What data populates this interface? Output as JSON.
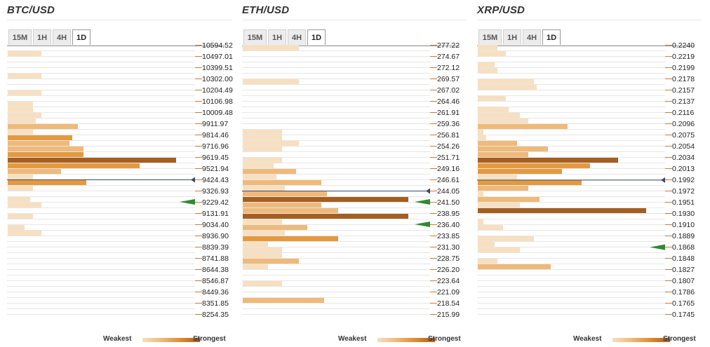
{
  "tabs": [
    "15M",
    "1H",
    "4H",
    "1D"
  ],
  "active_tab": "1D",
  "legend": {
    "weakest": "Weakest",
    "strongest": "Strongest"
  },
  "colors": {
    "lightest": "#f7dfc0",
    "light": "#f2c896",
    "medium": "#efb97a",
    "strong": "#e5993f",
    "strongest": "#a55e21",
    "marker": "#2e8b2e",
    "price_line": "#3b4a6b"
  },
  "chart_data": [
    {
      "type": "bar",
      "title": "BTC/USD",
      "price_levels": [
        "10594.52",
        "10497.01",
        "10399.51",
        "10302.00",
        "10204.49",
        "10106.98",
        "10009.48",
        "9911.97",
        "9814.46",
        "9716.96",
        "9619.45",
        "9521.94",
        "9424.43",
        "9326.93",
        "9229.42",
        "9131.91",
        "9034.40",
        "8936.90",
        "8839.39",
        "8741.88",
        "8644.38",
        "8546.87",
        "8449.36",
        "8351.85",
        "8254.35"
      ],
      "bars": [
        [
          0,
          0
        ],
        [
          1,
          12
        ],
        [
          0,
          0
        ],
        [
          0,
          0
        ],
        [
          0,
          0
        ],
        [
          1,
          12
        ],
        [
          0,
          0
        ],
        [
          0,
          0
        ],
        [
          1,
          12
        ],
        [
          0,
          0
        ],
        [
          1,
          9
        ],
        [
          1,
          9
        ],
        [
          1,
          12
        ],
        [
          1,
          10
        ],
        [
          2,
          25
        ],
        [
          1,
          9
        ],
        [
          3,
          23
        ],
        [
          2,
          22
        ],
        [
          2,
          27
        ],
        [
          3,
          27
        ],
        [
          4,
          60
        ],
        [
          3,
          47
        ],
        [
          2,
          19
        ],
        [
          1,
          9
        ],
        [
          3,
          28
        ],
        [
          1,
          9
        ],
        [
          0,
          0
        ],
        [
          1,
          8
        ],
        [
          1,
          12
        ],
        [
          0,
          0
        ],
        [
          1,
          9
        ],
        [
          0,
          0
        ],
        [
          1,
          6
        ],
        [
          1,
          12
        ],
        [
          0,
          0
        ],
        [
          0,
          0
        ],
        [
          0,
          0
        ],
        [
          0,
          0
        ],
        [
          0,
          0
        ],
        [
          0,
          0
        ],
        [
          0,
          0
        ],
        [
          0,
          0
        ],
        [
          0,
          0
        ],
        [
          0,
          0
        ],
        [
          0,
          0
        ],
        [
          0,
          0
        ],
        [
          0,
          0
        ],
        [
          0,
          0
        ],
        [
          0,
          0
        ]
      ],
      "current_price": 9424.43,
      "markers": [
        9229.42
      ]
    },
    {
      "type": "bar",
      "title": "ETH/USD",
      "price_levels": [
        "277.22",
        "274.67",
        "272.12",
        "269.57",
        "267.02",
        "264.46",
        "261.91",
        "259.36",
        "256.81",
        "254.26",
        "251.71",
        "249.16",
        "246.61",
        "244.05",
        "241.50",
        "238.95",
        "236.40",
        "233.85",
        "231.30",
        "228.75",
        "226.20",
        "223.64",
        "221.09",
        "218.54",
        "215.99"
      ],
      "bars": [
        [
          1,
          20
        ],
        [
          0,
          0
        ],
        [
          0,
          0
        ],
        [
          0,
          0
        ],
        [
          0,
          0
        ],
        [
          0,
          0
        ],
        [
          1,
          20
        ],
        [
          0,
          0
        ],
        [
          0,
          0
        ],
        [
          0,
          0
        ],
        [
          0,
          0
        ],
        [
          0,
          0
        ],
        [
          0,
          0
        ],
        [
          0,
          0
        ],
        [
          0,
          0
        ],
        [
          1,
          14
        ],
        [
          1,
          14
        ],
        [
          1,
          20
        ],
        [
          1,
          14
        ],
        [
          0,
          0
        ],
        [
          1,
          14
        ],
        [
          1,
          11
        ],
        [
          2,
          19
        ],
        [
          1,
          12
        ],
        [
          2,
          28
        ],
        [
          1,
          15
        ],
        [
          2,
          30
        ],
        [
          4,
          59
        ],
        [
          2,
          28
        ],
        [
          2,
          34
        ],
        [
          4,
          59
        ],
        [
          1,
          14
        ],
        [
          2,
          23
        ],
        [
          1,
          15
        ],
        [
          3,
          34
        ],
        [
          1,
          9
        ],
        [
          1,
          14
        ],
        [
          1,
          14
        ],
        [
          2,
          20
        ],
        [
          1,
          9
        ],
        [
          0,
          0
        ],
        [
          0,
          0
        ],
        [
          1,
          14
        ],
        [
          0,
          0
        ],
        [
          0,
          0
        ],
        [
          2,
          29
        ],
        [
          0,
          0
        ],
        [
          0,
          0
        ],
        [
          0,
          0
        ]
      ],
      "current_price": 244.05,
      "markers": [
        241.5,
        236.4
      ]
    },
    {
      "type": "bar",
      "title": "XRP/USD",
      "price_levels": [
        "0.2240",
        "0.2219",
        "0.2199",
        "0.2178",
        "0.2157",
        "0.2137",
        "0.2116",
        "0.2096",
        "0.2075",
        "0.2054",
        "0.2034",
        "0.2013",
        "0.1992",
        "0.1972",
        "0.1951",
        "0.1930",
        "0.1910",
        "0.1889",
        "0.1868",
        "0.1848",
        "0.1827",
        "0.1807",
        "0.1786",
        "0.1765",
        "0.1745"
      ],
      "bars": [
        [
          1,
          7
        ],
        [
          1,
          10
        ],
        [
          0,
          0
        ],
        [
          1,
          6
        ],
        [
          1,
          7
        ],
        [
          0,
          0
        ],
        [
          1,
          20
        ],
        [
          1,
          21
        ],
        [
          0,
          0
        ],
        [
          1,
          10
        ],
        [
          0,
          0
        ],
        [
          1,
          11
        ],
        [
          1,
          15
        ],
        [
          1,
          18
        ],
        [
          2,
          32
        ],
        [
          1,
          2
        ],
        [
          1,
          3
        ],
        [
          2,
          14
        ],
        [
          2,
          25
        ],
        [
          2,
          18
        ],
        [
          4,
          50
        ],
        [
          3,
          40
        ],
        [
          3,
          30
        ],
        [
          1,
          14
        ],
        [
          3,
          37
        ],
        [
          2,
          18
        ],
        [
          1,
          2
        ],
        [
          2,
          22
        ],
        [
          1,
          15
        ],
        [
          4,
          60
        ],
        [
          0,
          0
        ],
        [
          1,
          2
        ],
        [
          1,
          9
        ],
        [
          0,
          0
        ],
        [
          1,
          20
        ],
        [
          1,
          6
        ],
        [
          1,
          15
        ],
        [
          0,
          0
        ],
        [
          1,
          7
        ],
        [
          2,
          26
        ],
        [
          0,
          0
        ],
        [
          0,
          0
        ],
        [
          0,
          0
        ],
        [
          0,
          0
        ],
        [
          0,
          0
        ],
        [
          0,
          0
        ],
        [
          0,
          0
        ],
        [
          0,
          0
        ],
        [
          0,
          0
        ]
      ],
      "current_price": 0.1992,
      "markers": [
        0.1868
      ]
    }
  ]
}
